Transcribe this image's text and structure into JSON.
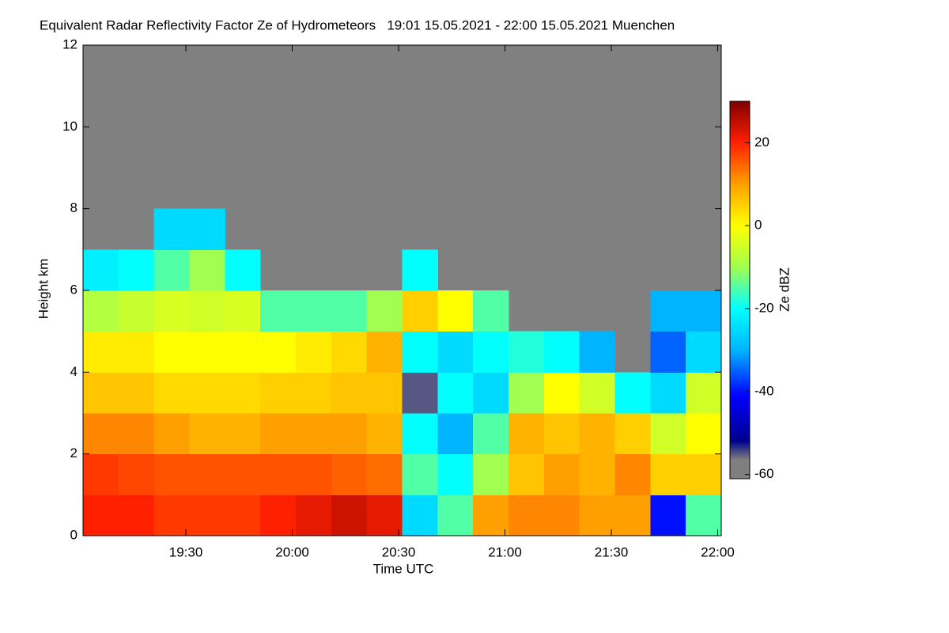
{
  "chart_data": {
    "type": "heatmap",
    "title": "Equivalent Radar Reflectivity Factor Ze of Hydrometeors   19:01 15.05.2021 - 22:00 15.05.2021 Muenchen",
    "xlabel": "Time UTC",
    "ylabel": "Height km",
    "colorbar_label": "Ze dBZ",
    "x": [
      1141,
      1151,
      1161,
      1171,
      1181,
      1191,
      1201,
      1211,
      1221,
      1231,
      1241,
      1251,
      1261,
      1271,
      1281,
      1291,
      1301,
      1311
    ],
    "y": [
      0,
      1,
      2,
      3,
      4,
      5,
      6,
      7,
      8,
      9,
      10,
      11
    ],
    "z": [
      [
        20,
        18,
        12,
        6,
        2,
        -8,
        -22,
        null,
        null,
        null,
        null,
        null
      ],
      [
        20,
        17,
        12,
        6,
        2,
        -6,
        -20,
        null,
        null,
        null,
        null,
        null
      ],
      [
        18,
        16,
        10,
        4,
        0,
        -4,
        -15,
        -25,
        null,
        null,
        null,
        null
      ],
      [
        18,
        16,
        8,
        4,
        0,
        -5,
        -10,
        -25,
        null,
        null,
        null,
        null
      ],
      [
        18,
        16,
        8,
        4,
        0,
        -4,
        -20,
        null,
        null,
        null,
        null,
        null
      ],
      [
        20,
        16,
        10,
        5,
        0,
        -15,
        null,
        null,
        null,
        null,
        null,
        null
      ],
      [
        22,
        16,
        10,
        5,
        2,
        -15,
        null,
        null,
        null,
        null,
        null,
        null
      ],
      [
        24,
        15,
        10,
        6,
        4,
        -15,
        null,
        null,
        null,
        null,
        null,
        null
      ],
      [
        22,
        14,
        8,
        6,
        8,
        -10,
        null,
        null,
        null,
        null,
        null,
        null
      ],
      [
        -25,
        -15,
        -20,
        -55,
        -20,
        5,
        -20,
        null,
        null,
        null,
        null,
        null
      ],
      [
        -15,
        -20,
        -30,
        -20,
        -25,
        0,
        null,
        null,
        null,
        null,
        null,
        null
      ],
      [
        10,
        -10,
        -15,
        -25,
        -20,
        -15,
        null,
        null,
        null,
        null,
        null,
        null
      ],
      [
        12,
        6,
        8,
        -10,
        -18,
        null,
        null,
        null,
        null,
        null,
        null,
        null
      ],
      [
        12,
        10,
        6,
        0,
        -20,
        null,
        null,
        null,
        null,
        null,
        null,
        null
      ],
      [
        10,
        8,
        8,
        -5,
        -30,
        null,
        null,
        null,
        null,
        null,
        null,
        null
      ],
      [
        10,
        12,
        5,
        -20,
        null,
        null,
        null,
        null,
        null,
        null,
        null,
        null
      ],
      [
        -40,
        5,
        -5,
        -25,
        -35,
        -30,
        null,
        null,
        null,
        null,
        null,
        null
      ],
      [
        -15,
        5,
        0,
        -5,
        -25,
        -30,
        null,
        null,
        null,
        null,
        null,
        null
      ]
    ],
    "xlim": [
      1141,
      1321
    ],
    "xticks": [
      {
        "value": 1170,
        "label": "19:30"
      },
      {
        "value": 1200,
        "label": "20:00"
      },
      {
        "value": 1230,
        "label": "20:30"
      },
      {
        "value": 1260,
        "label": "21:00"
      },
      {
        "value": 1290,
        "label": "21:30"
      },
      {
        "value": 1320,
        "label": "22:00"
      }
    ],
    "ylim": [
      0,
      12
    ],
    "yticks": [
      0,
      2,
      4,
      6,
      8,
      10,
      12
    ],
    "zlim": [
      -61,
      30
    ],
    "zticks": [
      20,
      0,
      -20,
      -40,
      -60
    ]
  }
}
